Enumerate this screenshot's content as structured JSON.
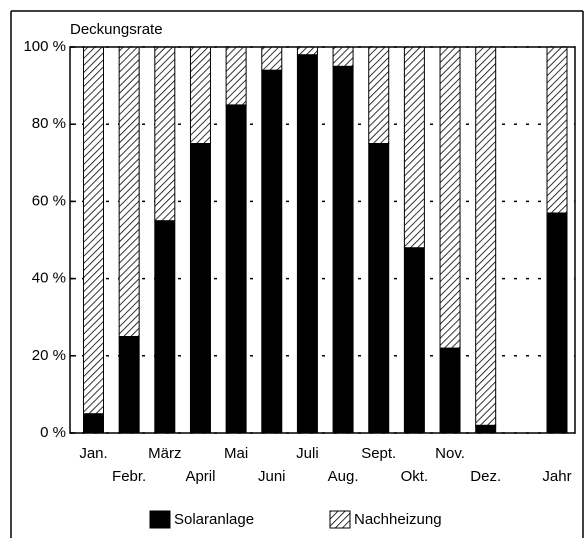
{
  "chart_data": {
    "type": "stacked_bar",
    "ylabel": "Deckungsrate",
    "categories": [
      "Jan.",
      "Febr.",
      "März",
      "April",
      "Mai",
      "Juni",
      "Juli",
      "Aug.",
      "Sept.",
      "Okt.",
      "Nov.",
      "Dez.",
      null,
      "Jahr"
    ],
    "series": [
      {
        "name": "Solaranlage",
        "color": "#000000",
        "hatch": false,
        "values": [
          5,
          25,
          55,
          75,
          85,
          94,
          98,
          95,
          75,
          48,
          22,
          2,
          null,
          57
        ]
      },
      {
        "name": "Nachheizung",
        "color": "#000000",
        "hatch": true,
        "values": [
          95,
          75,
          45,
          25,
          15,
          6,
          2,
          5,
          25,
          52,
          78,
          98,
          null,
          43
        ]
      }
    ],
    "ylim": [
      0,
      100
    ],
    "yticks": [
      {
        "value": 0,
        "label": "0 %"
      },
      {
        "value": 20,
        "label": "20 %"
      },
      {
        "value": 40,
        "label": "40 %"
      },
      {
        "value": 60,
        "label": "60 %"
      },
      {
        "value": 80,
        "label": "80 %"
      },
      {
        "value": 100,
        "label": "100 %"
      }
    ],
    "grid": true
  }
}
